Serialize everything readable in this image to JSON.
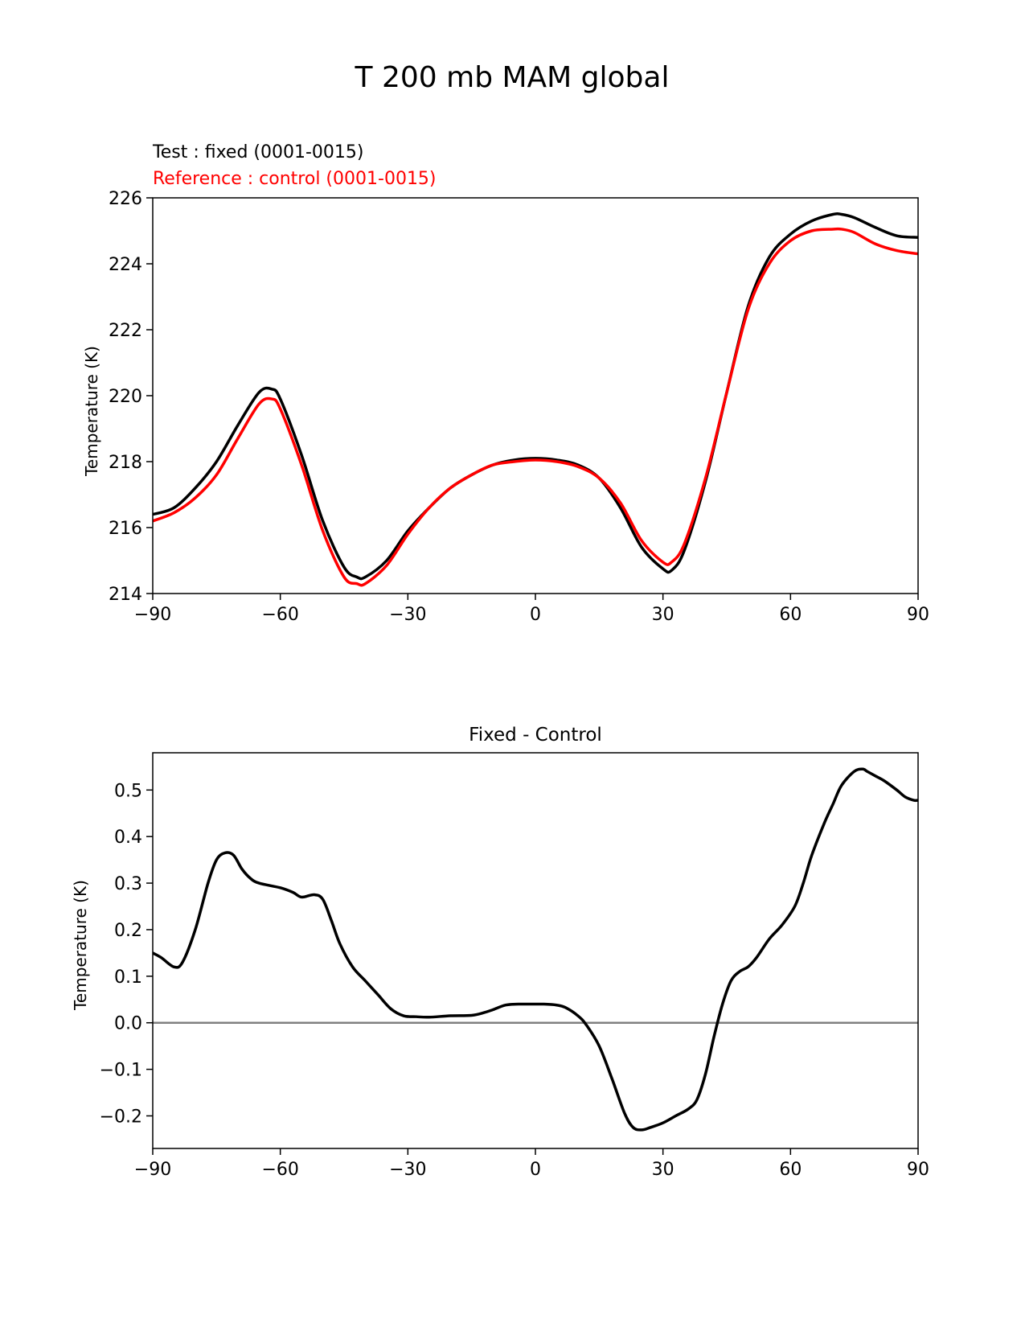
{
  "figure": {
    "title": "T 200 mb MAM global"
  },
  "chart_data": [
    {
      "type": "line",
      "legend_lines": [
        {
          "text": "Test : fixed (0001-0015)",
          "color": "#000000"
        },
        {
          "text": "Reference : control (0001-0015)",
          "color": "#ff0000"
        }
      ],
      "xlabel": "",
      "ylabel": "Temperature (K)",
      "xlim": [
        -90,
        90
      ],
      "ylim": [
        214,
        226
      ],
      "xticks": [
        -90,
        -60,
        -30,
        0,
        30,
        60,
        90
      ],
      "xtick_labels": [
        "−90",
        "−60",
        "−30",
        "0",
        "30",
        "60",
        "90"
      ],
      "yticks": [
        214,
        216,
        218,
        220,
        222,
        224,
        226
      ],
      "ytick_labels": [
        "214",
        "216",
        "218",
        "220",
        "222",
        "224",
        "226"
      ],
      "grid": false,
      "series": [
        {
          "name": "Test : fixed (0001-0015)",
          "color": "#000000",
          "x": [
            -90,
            -85,
            -80,
            -75,
            -70,
            -65,
            -62,
            -60,
            -55,
            -50,
            -45,
            -42,
            -40,
            -35,
            -30,
            -25,
            -20,
            -15,
            -10,
            -5,
            0,
            5,
            10,
            15,
            20,
            25,
            30,
            32,
            35,
            40,
            45,
            50,
            55,
            60,
            65,
            70,
            72,
            75,
            80,
            85,
            90
          ],
          "y": [
            216.4,
            216.6,
            217.2,
            218.0,
            219.1,
            220.1,
            220.2,
            219.9,
            218.2,
            216.2,
            214.8,
            214.5,
            214.5,
            215.0,
            215.9,
            216.6,
            217.2,
            217.6,
            217.9,
            218.05,
            218.1,
            218.05,
            217.9,
            217.5,
            216.6,
            215.4,
            214.75,
            214.7,
            215.3,
            217.4,
            220.1,
            222.7,
            224.2,
            224.9,
            225.3,
            225.5,
            225.5,
            225.4,
            225.1,
            224.85,
            224.8
          ]
        },
        {
          "name": "Reference : control (0001-0015)",
          "color": "#ff0000",
          "x": [
            -90,
            -85,
            -80,
            -75,
            -70,
            -65,
            -62,
            -60,
            -55,
            -50,
            -45,
            -42,
            -40,
            -35,
            -30,
            -25,
            -20,
            -15,
            -10,
            -5,
            0,
            5,
            10,
            15,
            20,
            25,
            30,
            32,
            35,
            40,
            45,
            50,
            55,
            60,
            65,
            70,
            72,
            75,
            80,
            85,
            90
          ],
          "y": [
            216.2,
            216.45,
            216.9,
            217.6,
            218.7,
            219.75,
            219.9,
            219.6,
            217.9,
            215.9,
            214.5,
            214.3,
            214.3,
            214.85,
            215.8,
            216.6,
            217.2,
            217.6,
            217.9,
            218.0,
            218.05,
            218.0,
            217.85,
            217.5,
            216.75,
            215.6,
            214.95,
            214.95,
            215.5,
            217.5,
            220.1,
            222.6,
            224.0,
            224.7,
            225.0,
            225.05,
            225.05,
            224.95,
            224.6,
            224.4,
            224.3
          ]
        }
      ]
    },
    {
      "type": "line",
      "title": "Fixed - Control",
      "xlabel": "",
      "ylabel": "Temperature (K)",
      "xlim": [
        -90,
        90
      ],
      "ylim": [
        -0.27,
        0.58
      ],
      "xticks": [
        -90,
        -60,
        -30,
        0,
        30,
        60,
        90
      ],
      "xtick_labels": [
        "−90",
        "−60",
        "−30",
        "0",
        "30",
        "60",
        "90"
      ],
      "yticks": [
        -0.2,
        -0.1,
        0.0,
        0.1,
        0.2,
        0.3,
        0.4,
        0.5
      ],
      "ytick_labels": [
        "−0.2",
        "−0.1",
        "0.0",
        "0.1",
        "0.2",
        "0.3",
        "0.4",
        "0.5"
      ],
      "grid": false,
      "zero_line": {
        "value": 0.0,
        "color": "#808080"
      },
      "series": [
        {
          "color": "#000000",
          "x": [
            -90,
            -88,
            -85,
            -83,
            -80,
            -77,
            -75,
            -73,
            -71,
            -69,
            -67,
            -65,
            -60,
            -57,
            -55,
            -52,
            -50,
            -48,
            -46,
            -43,
            -40,
            -37,
            -34,
            -31,
            -28,
            -25,
            -20,
            -15,
            -12,
            -10,
            -7,
            -4,
            -1,
            2,
            5,
            7,
            10,
            12,
            15,
            18,
            21,
            23,
            25,
            27,
            30,
            33,
            36,
            38,
            40,
            42,
            44,
            46,
            48,
            50,
            52,
            55,
            58,
            61,
            63,
            65,
            68,
            70,
            72,
            75,
            77,
            78,
            80,
            82,
            85,
            87,
            89,
            90
          ],
          "y": [
            0.15,
            0.14,
            0.12,
            0.13,
            0.2,
            0.3,
            0.35,
            0.365,
            0.36,
            0.33,
            0.31,
            0.3,
            0.29,
            0.28,
            0.27,
            0.275,
            0.265,
            0.22,
            0.17,
            0.12,
            0.09,
            0.06,
            0.03,
            0.015,
            0.013,
            0.012,
            0.015,
            0.016,
            0.022,
            0.028,
            0.038,
            0.04,
            0.04,
            0.04,
            0.038,
            0.033,
            0.015,
            -0.005,
            -0.05,
            -0.12,
            -0.195,
            -0.225,
            -0.23,
            -0.225,
            -0.215,
            -0.2,
            -0.185,
            -0.165,
            -0.11,
            -0.03,
            0.04,
            0.09,
            0.11,
            0.12,
            0.14,
            0.18,
            0.21,
            0.25,
            0.3,
            0.36,
            0.43,
            0.47,
            0.51,
            0.54,
            0.545,
            0.54,
            0.53,
            0.52,
            0.5,
            0.485,
            0.478,
            0.478
          ]
        }
      ]
    }
  ]
}
